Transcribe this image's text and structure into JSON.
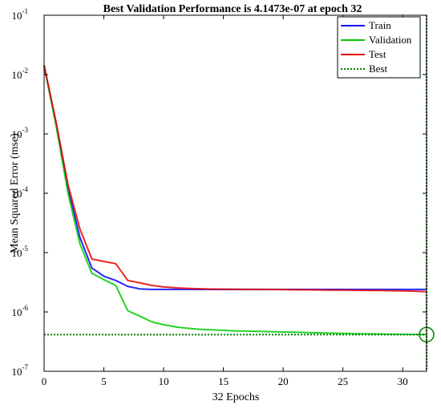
{
  "chart_data": {
    "type": "line",
    "title": "Best Validation Performance is 4.1473e-07 at epoch 32",
    "xlabel": "32 Epochs",
    "ylabel": "Mean Squared Error  (mse)",
    "xlim": [
      0,
      32
    ],
    "ylim": [
      1e-07,
      0.1
    ],
    "yscale": "log",
    "x_ticks": [
      0,
      5,
      10,
      15,
      20,
      25,
      30
    ],
    "y_ticks": [
      {
        "base": "10",
        "exp": "-7",
        "value": 1e-07
      },
      {
        "base": "10",
        "exp": "-6",
        "value": 1e-06
      },
      {
        "base": "10",
        "exp": "-5",
        "value": 1e-05
      },
      {
        "base": "10",
        "exp": "-4",
        "value": 0.0001
      },
      {
        "base": "10",
        "exp": "-3",
        "value": 0.001
      },
      {
        "base": "10",
        "exp": "-2",
        "value": 0.01
      },
      {
        "base": "10",
        "exp": "-1",
        "value": 0.1
      }
    ],
    "legend_position": "top-right",
    "legend": [
      {
        "label": "Train",
        "color": "#0000ff",
        "style": "solid"
      },
      {
        "label": "Validation",
        "color": "#00cc00",
        "style": "solid"
      },
      {
        "label": "Test",
        "color": "#e60000",
        "style": "solid"
      },
      {
        "label": "Best",
        "color": "#008000",
        "style": "dotted"
      }
    ],
    "series": [
      {
        "name": "Train",
        "color": "#0000ff",
        "x": [
          0,
          1,
          2,
          3,
          4,
          5,
          6,
          7,
          8,
          9,
          10,
          11,
          12,
          13,
          14,
          15,
          16,
          17,
          18,
          19,
          20,
          21,
          22,
          23,
          24,
          25,
          26,
          27,
          28,
          29,
          30,
          31,
          32
        ],
        "y": [
          0.014,
          0.0015,
          0.00012,
          1.8e-05,
          5.5e-06,
          4e-06,
          3.4e-06,
          2.7e-06,
          2.45e-06,
          2.4e-06,
          2.4e-06,
          2.4e-06,
          2.4e-06,
          2.4e-06,
          2.4e-06,
          2.4e-06,
          2.4e-06,
          2.4e-06,
          2.4e-06,
          2.4e-06,
          2.4e-06,
          2.4e-06,
          2.4e-06,
          2.4e-06,
          2.4e-06,
          2.4e-06,
          2.4e-06,
          2.4e-06,
          2.4e-06,
          2.4e-06,
          2.4e-06,
          2.4e-06,
          2.4e-06
        ]
      },
      {
        "name": "Validation",
        "color": "#00cc00",
        "x": [
          0,
          1,
          2,
          3,
          4,
          5,
          6,
          7,
          8,
          9,
          10,
          11,
          12,
          13,
          14,
          15,
          16,
          17,
          18,
          19,
          20,
          21,
          22,
          23,
          24,
          25,
          26,
          27,
          28,
          29,
          30,
          31,
          32
        ],
        "y": [
          0.014,
          0.0014,
          0.0001,
          1.4e-05,
          4.5e-06,
          3.5e-06,
          2.8e-06,
          1.05e-06,
          8.5e-07,
          6.8e-07,
          6.1e-07,
          5.6e-07,
          5.3e-07,
          5.1e-07,
          5e-07,
          4.9e-07,
          4.8e-07,
          4.75e-07,
          4.7e-07,
          4.65e-07,
          4.6e-07,
          4.55e-07,
          4.5e-07,
          4.45e-07,
          4.4e-07,
          4.35e-07,
          4.3e-07,
          4.28e-07,
          4.25e-07,
          4.22e-07,
          4.2e-07,
          4.18e-07,
          4.1473e-07
        ]
      },
      {
        "name": "Test",
        "color": "#e60000",
        "x": [
          0,
          1,
          2,
          3,
          4,
          5,
          6,
          7,
          8,
          9,
          10,
          11,
          12,
          13,
          14,
          15,
          16,
          17,
          18,
          19,
          20,
          21,
          22,
          23,
          24,
          25,
          26,
          27,
          28,
          29,
          30,
          31,
          32
        ],
        "y": [
          0.0145,
          0.0016,
          0.00014,
          2.5e-05,
          7.8e-06,
          7.1e-06,
          6.5e-06,
          3.4e-06,
          3.1e-06,
          2.8e-06,
          2.65e-06,
          2.55e-06,
          2.5e-06,
          2.46e-06,
          2.43e-06,
          2.42e-06,
          2.41e-06,
          2.4e-06,
          2.4e-06,
          2.39e-06,
          2.38e-06,
          2.37e-06,
          2.36e-06,
          2.35e-06,
          2.34e-06,
          2.33e-06,
          2.32e-06,
          2.31e-06,
          2.3e-06,
          2.28e-06,
          2.26e-06,
          2.24e-06,
          2.2e-06
        ]
      }
    ],
    "best": {
      "epoch": 32,
      "value": 4.1473e-07,
      "color": "#008000"
    }
  }
}
